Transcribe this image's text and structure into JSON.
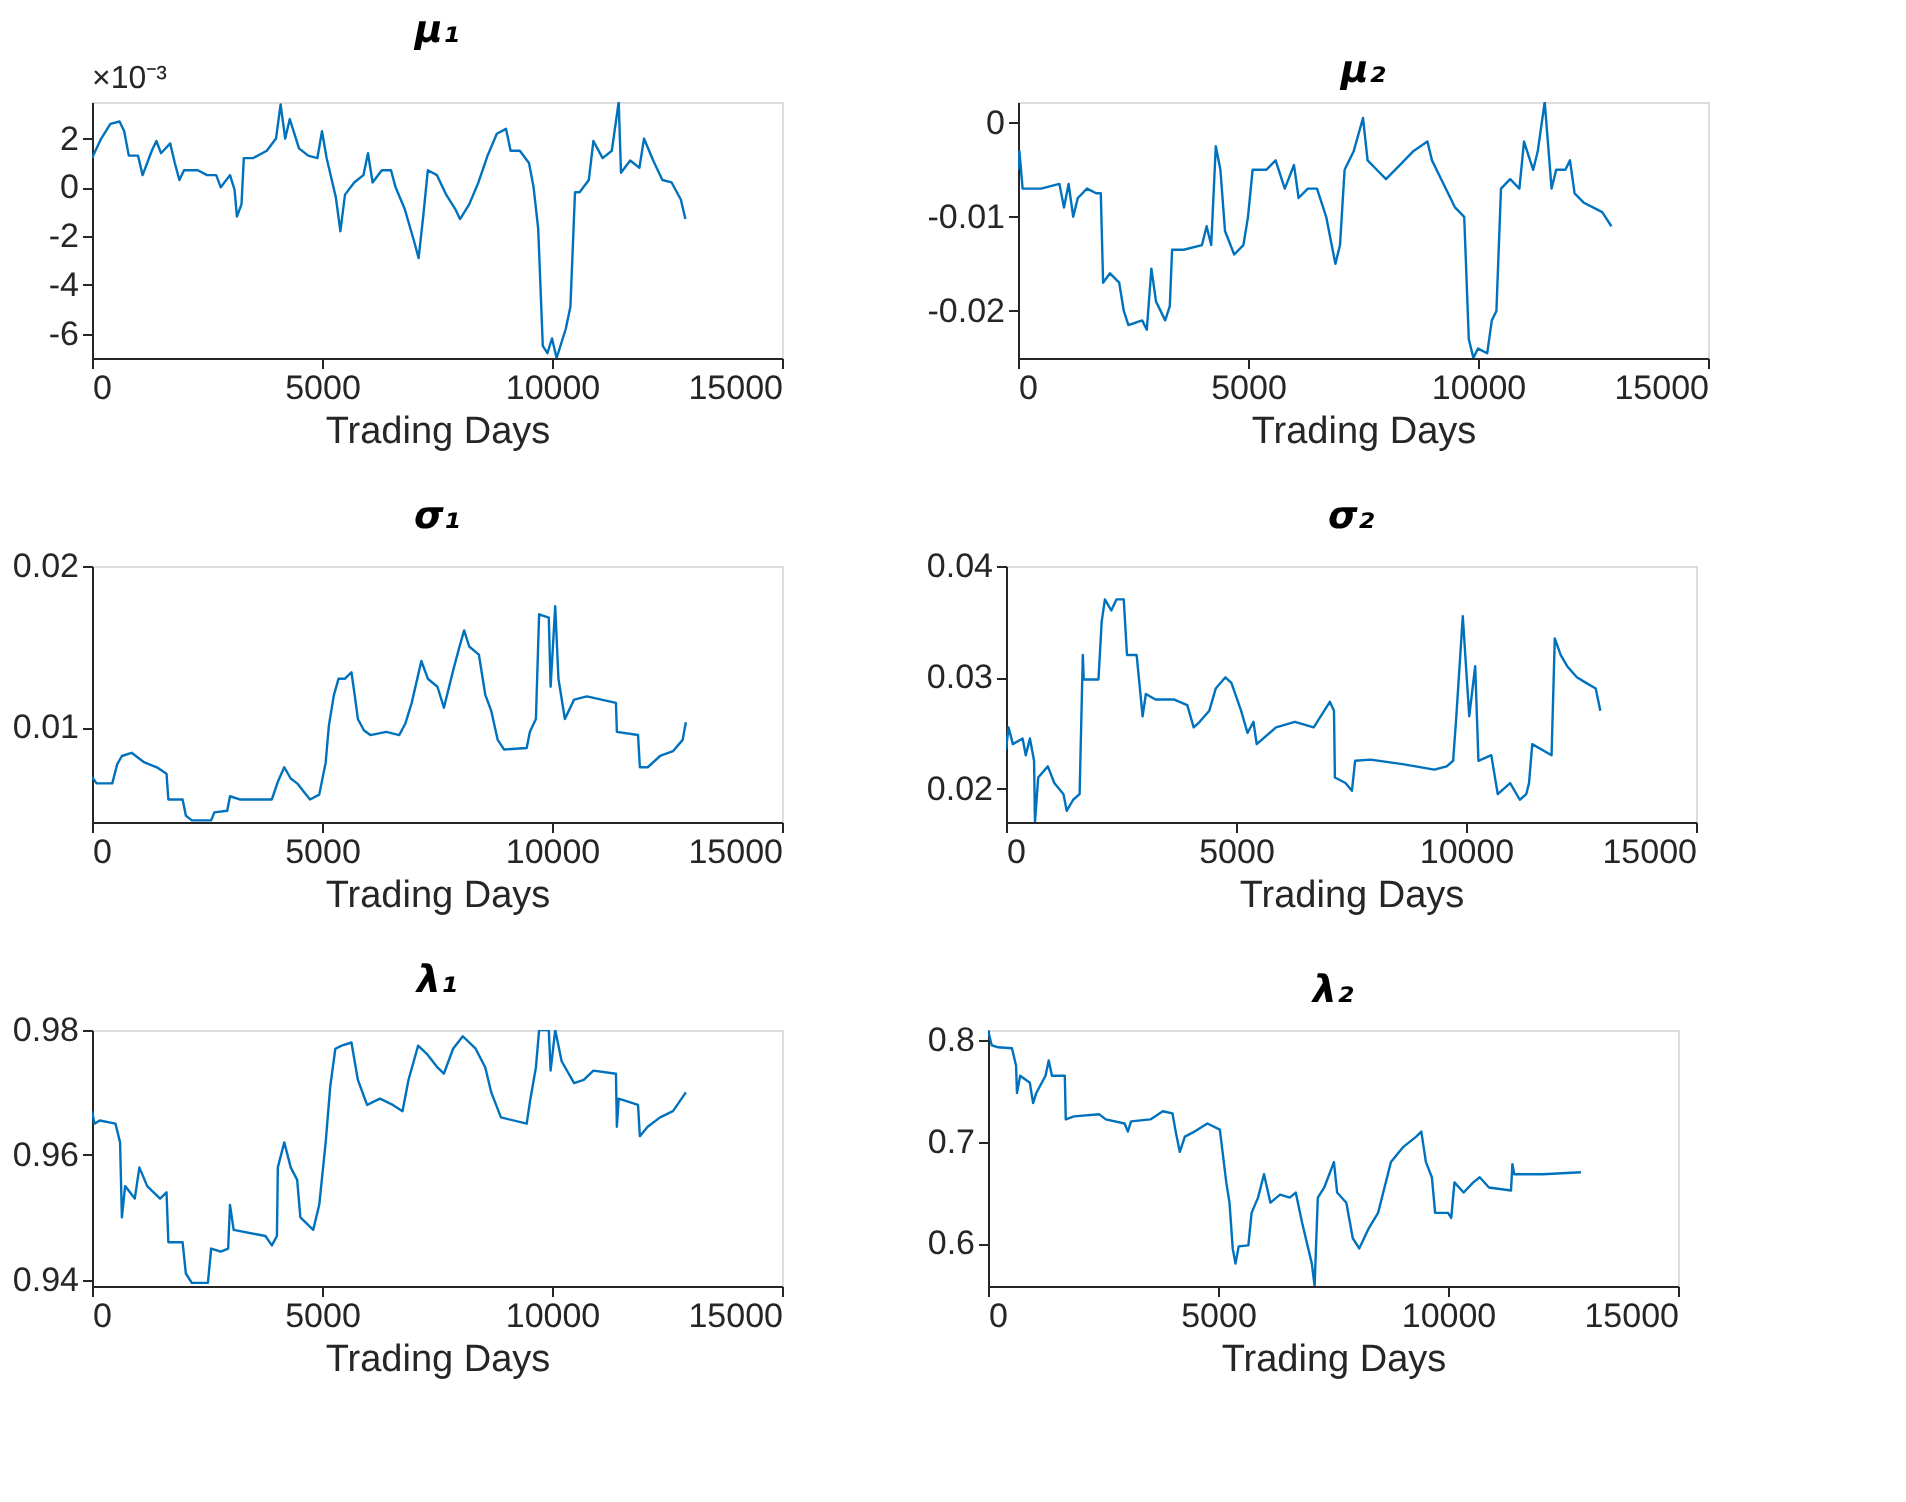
{
  "chart_data": [
    {
      "type": "line",
      "title": "μ₁",
      "xlabel": "Trading Days",
      "color": "#0072bd",
      "xlim": [
        0,
        15000
      ],
      "xticks": [
        0,
        5000,
        10000,
        15000
      ],
      "ylim": [
        -7,
        3.5
      ],
      "yticks": [
        -6,
        -4,
        -2,
        0,
        2
      ],
      "grid": false,
      "annotations": [
        "×10⁻³"
      ],
      "x": [
        0,
        200,
        400,
        600,
        700,
        800,
        1000,
        1100,
        1300,
        1400,
        1500,
        1700,
        1800,
        1900,
        2000,
        2300,
        2500,
        2700,
        2800,
        3000,
        3100,
        3150,
        3250,
        3300,
        3500,
        3800,
        4000,
        4100,
        4200,
        4300,
        4500,
        4700,
        4900,
        5000,
        5100,
        5300,
        5400,
        5500,
        5700,
        5900,
        6000,
        6100,
        6300,
        6500,
        6600,
        6800,
        7000,
        7100,
        7200,
        7300,
        7500,
        7700,
        7900,
        8000,
        8200,
        8400,
        8600,
        8800,
        9000,
        9100,
        9300,
        9500,
        9600,
        9700,
        9800,
        9900,
        10000,
        10100,
        10300,
        10400,
        10500,
        10600,
        10800,
        10900,
        11100,
        11300,
        11450,
        11500,
        11700,
        11900,
        12000,
        12200,
        12400,
        12600,
        12800,
        12900
      ],
      "values": [
        1.2,
        2.0,
        2.6,
        2.7,
        2.3,
        1.3,
        1.3,
        0.5,
        1.5,
        1.9,
        1.4,
        1.8,
        1.0,
        0.3,
        0.7,
        0.7,
        0.5,
        0.5,
        0,
        0.5,
        -0.1,
        -1.2,
        -0.7,
        1.2,
        1.2,
        1.5,
        2.0,
        3.4,
        2.0,
        2.8,
        1.6,
        1.3,
        1.2,
        2.3,
        1.2,
        -0.4,
        -1.8,
        -0.3,
        0.2,
        0.5,
        1.4,
        0.2,
        0.7,
        0.7,
        0,
        -0.9,
        -2.2,
        -2.9,
        -1.2,
        0.7,
        0.5,
        -0.3,
        -0.9,
        -1.3,
        -0.7,
        0.2,
        1.3,
        2.2,
        2.4,
        1.5,
        1.5,
        1.0,
        0,
        -1.7,
        -6.5,
        -6.8,
        -6.2,
        -7.0,
        -5.8,
        -4.9,
        -0.2,
        -0.2,
        0.3,
        1.9,
        1.2,
        1.5,
        3.5,
        0.6,
        1.1,
        0.8,
        2.0,
        1.1,
        0.3,
        0.2,
        -0.5,
        -1.3
      ]
    },
    {
      "type": "line",
      "title": "μ₂",
      "xlabel": "Trading Days",
      "color": "#0072bd",
      "xlim": [
        0,
        15000
      ],
      "xticks": [
        0,
        5000,
        10000,
        15000
      ],
      "ylim": [
        -0.025,
        0.0022
      ],
      "yticks": [
        -0.02,
        -0.01,
        0
      ],
      "grid": false,
      "x": [
        0,
        30,
        100,
        500,
        900,
        1000,
        1100,
        1200,
        1300,
        1500,
        1700,
        1800,
        1850,
        2000,
        2200,
        2300,
        2400,
        2700,
        2800,
        2900,
        3000,
        3200,
        3300,
        3350,
        3600,
        4000,
        4100,
        4200,
        4300,
        4400,
        4500,
        4700,
        4900,
        5000,
        5100,
        5400,
        5600,
        5800,
        6000,
        6100,
        6300,
        6500,
        6700,
        6900,
        7000,
        7100,
        7300,
        7500,
        7600,
        7800,
        8000,
        8300,
        8600,
        8900,
        9000,
        9200,
        9400,
        9500,
        9700,
        9800,
        9900,
        10000,
        10200,
        10300,
        10400,
        10500,
        10700,
        10900,
        11000,
        11200,
        11300,
        11450,
        11600,
        11700,
        11900,
        12000,
        12100,
        12300,
        12500,
        12700,
        12900
      ],
      "values": [
        -0.005,
        -0.003,
        -0.007,
        -0.007,
        -0.0065,
        -0.009,
        -0.0065,
        -0.01,
        -0.008,
        -0.007,
        -0.0075,
        -0.0075,
        -0.017,
        -0.016,
        -0.017,
        -0.02,
        -0.0215,
        -0.021,
        -0.022,
        -0.0155,
        -0.019,
        -0.021,
        -0.0195,
        -0.0135,
        -0.0135,
        -0.013,
        -0.011,
        -0.013,
        -0.0025,
        -0.005,
        -0.0115,
        -0.014,
        -0.013,
        -0.01,
        -0.005,
        -0.005,
        -0.004,
        -0.007,
        -0.0045,
        -0.008,
        -0.007,
        -0.007,
        -0.01,
        -0.015,
        -0.013,
        -0.005,
        -0.003,
        0.0005,
        -0.004,
        -0.005,
        -0.006,
        -0.0045,
        -0.003,
        -0.002,
        -0.004,
        -0.006,
        -0.008,
        -0.009,
        -0.01,
        -0.023,
        -0.025,
        -0.024,
        -0.0245,
        -0.021,
        -0.02,
        -0.007,
        -0.006,
        -0.007,
        -0.002,
        -0.005,
        -0.003,
        0.0022,
        -0.007,
        -0.005,
        -0.005,
        -0.004,
        -0.0075,
        -0.0085,
        -0.009,
        -0.0095,
        -0.011
      ]
    },
    {
      "type": "line",
      "title": "σ₁",
      "xlabel": "Trading Days",
      "color": "#0072bd",
      "xlim": [
        0,
        15000
      ],
      "xticks": [
        0,
        5000,
        10000,
        15000
      ],
      "ylim": [
        0.0041,
        0.02
      ],
      "yticks": [
        0.01,
        0.02
      ],
      "grid": false,
      "x": [
        0,
        100,
        440,
        550,
        650,
        860,
        1140,
        1410,
        1620,
        1660,
        1970,
        2040,
        2170,
        2590,
        2660,
        2940,
        3000,
        3210,
        3910,
        4040,
        4180,
        4320,
        4460,
        4600,
        4740,
        4940,
        5080,
        5150,
        5260,
        5360,
        5500,
        5640,
        5710,
        5780,
        5910,
        6050,
        6400,
        6680,
        6810,
        6950,
        7160,
        7300,
        7510,
        7650,
        7850,
        7990,
        8090,
        8200,
        8410,
        8550,
        8680,
        8820,
        8960,
        9450,
        9520,
        9650,
        9720,
        9930,
        9970,
        10070,
        10140,
        10280,
        10480,
        10760,
        11390,
        11410,
        11870,
        11910,
        12080,
        12350,
        12630,
        12840,
        12910
      ],
      "values": [
        0.0069,
        0.0065,
        0.0065,
        0.0077,
        0.0082,
        0.0084,
        0.0078,
        0.0075,
        0.0071,
        0.0055,
        0.0055,
        0.0045,
        0.0042,
        0.0042,
        0.0047,
        0.0048,
        0.0057,
        0.0055,
        0.0055,
        0.0066,
        0.0075,
        0.0068,
        0.0065,
        0.006,
        0.0055,
        0.0058,
        0.0078,
        0.0101,
        0.012,
        0.013,
        0.013,
        0.0134,
        0.012,
        0.0105,
        0.0098,
        0.0095,
        0.0097,
        0.0095,
        0.0102,
        0.0115,
        0.0141,
        0.013,
        0.0125,
        0.0112,
        0.0135,
        0.015,
        0.016,
        0.015,
        0.0145,
        0.012,
        0.011,
        0.0092,
        0.0086,
        0.0087,
        0.0097,
        0.0105,
        0.017,
        0.0168,
        0.0125,
        0.0175,
        0.013,
        0.0105,
        0.0117,
        0.0119,
        0.0115,
        0.0097,
        0.0095,
        0.0075,
        0.0075,
        0.0082,
        0.0085,
        0.0092,
        0.0103
      ]
    },
    {
      "type": "line",
      "title": "σ₂",
      "xlabel": "Trading Days",
      "color": "#0072bd",
      "xlim": [
        0,
        15000
      ],
      "xticks": [
        0,
        5000,
        10000,
        15000
      ],
      "ylim": [
        0.017,
        0.04
      ],
      "yticks": [
        0.02,
        0.03,
        0.04
      ],
      "grid": false,
      "x": [
        0,
        55,
        150,
        360,
        430,
        520,
        610,
        630,
        700,
        910,
        1050,
        1250,
        1320,
        1460,
        1600,
        1670,
        1690,
        2010,
        2080,
        2150,
        2290,
        2400,
        2560,
        2630,
        2840,
        2970,
        3040,
        3250,
        3660,
        3940,
        4080,
        4210,
        4420,
        4560,
        4770,
        4900,
        5110,
        5250,
        5380,
        5450,
        5870,
        6280,
        6690,
        7040,
        7130,
        7150,
        7380,
        7520,
        7590,
        7930,
        8620,
        9310,
        9580,
        9720,
        9790,
        9930,
        10070,
        10200,
        10270,
        10550,
        10690,
        10960,
        11170,
        11310,
        11370,
        11440,
        11860,
        11930,
        12060,
        12200,
        12410,
        12610,
        12820,
        12920
      ],
      "values": [
        0.0235,
        0.0255,
        0.024,
        0.0245,
        0.023,
        0.0245,
        0.0225,
        0.017,
        0.021,
        0.022,
        0.0205,
        0.0195,
        0.018,
        0.019,
        0.0195,
        0.032,
        0.0298,
        0.0298,
        0.035,
        0.037,
        0.036,
        0.037,
        0.037,
        0.032,
        0.032,
        0.0265,
        0.0285,
        0.028,
        0.028,
        0.0275,
        0.0255,
        0.026,
        0.027,
        0.029,
        0.03,
        0.0295,
        0.027,
        0.025,
        0.026,
        0.024,
        0.0255,
        0.026,
        0.0255,
        0.0278,
        0.027,
        0.021,
        0.0205,
        0.0198,
        0.0225,
        0.0226,
        0.0222,
        0.0217,
        0.022,
        0.0225,
        0.0265,
        0.0355,
        0.0265,
        0.031,
        0.0225,
        0.023,
        0.0195,
        0.0205,
        0.019,
        0.0195,
        0.0205,
        0.024,
        0.023,
        0.0335,
        0.032,
        0.031,
        0.03,
        0.0295,
        0.029,
        0.027
      ]
    },
    {
      "type": "line",
      "title": "λ₁",
      "xlabel": "Trading Days",
      "color": "#0072bd",
      "xlim": [
        0,
        15000
      ],
      "xticks": [
        0,
        5000,
        10000,
        15000
      ],
      "ylim": [
        0.939,
        0.98
      ],
      "yticks": [
        0.94,
        0.96,
        0.98
      ],
      "grid": false,
      "x": [
        0,
        55,
        170,
        510,
        610,
        650,
        720,
        930,
        1030,
        1200,
        1340,
        1480,
        1620,
        1660,
        1970,
        2040,
        2170,
        2520,
        2590,
        2800,
        2960,
        3000,
        3080,
        3770,
        3910,
        4020,
        4040,
        4180,
        4320,
        4460,
        4530,
        4670,
        4810,
        4940,
        5080,
        5180,
        5290,
        5430,
        5640,
        5780,
        5980,
        6260,
        6540,
        6750,
        6880,
        7090,
        7300,
        7510,
        7650,
        7850,
        8060,
        8340,
        8550,
        8680,
        8890,
        9450,
        9520,
        9650,
        9720,
        9930,
        9970,
        10070,
        10210,
        10480,
        10690,
        10900,
        11390,
        11410,
        11450,
        11870,
        11910,
        12080,
        12350,
        12630,
        12910
      ],
      "values": [
        0.967,
        0.965,
        0.9655,
        0.965,
        0.962,
        0.95,
        0.955,
        0.953,
        0.958,
        0.955,
        0.954,
        0.953,
        0.954,
        0.946,
        0.946,
        0.941,
        0.9395,
        0.9395,
        0.945,
        0.9445,
        0.945,
        0.952,
        0.948,
        0.947,
        0.9455,
        0.947,
        0.958,
        0.962,
        0.958,
        0.956,
        0.95,
        0.949,
        0.948,
        0.952,
        0.962,
        0.971,
        0.977,
        0.9775,
        0.978,
        0.972,
        0.968,
        0.969,
        0.968,
        0.967,
        0.972,
        0.9775,
        0.976,
        0.974,
        0.973,
        0.977,
        0.979,
        0.977,
        0.974,
        0.97,
        0.966,
        0.965,
        0.9685,
        0.974,
        0.98,
        0.98,
        0.9735,
        0.98,
        0.975,
        0.9715,
        0.972,
        0.9735,
        0.973,
        0.9645,
        0.969,
        0.968,
        0.963,
        0.9645,
        0.966,
        0.967,
        0.97
      ]
    },
    {
      "type": "line",
      "title": "λ₂",
      "xlabel": "Trading Days",
      "color": "#0072bd",
      "xlim": [
        0,
        15000
      ],
      "xticks": [
        0,
        5000,
        10000,
        15000
      ],
      "ylim": [
        0.558,
        0.81
      ],
      "yticks": [
        0.6,
        0.7,
        0.8
      ],
      "grid": false,
      "x": [
        0,
        80,
        220,
        520,
        610,
        630,
        700,
        910,
        980,
        1050,
        1250,
        1320,
        1390,
        1670,
        1690,
        1870,
        2420,
        2560,
        2970,
        3040,
        3110,
        3530,
        3800,
        4010,
        4080,
        4170,
        4280,
        4490,
        4770,
        5040,
        5180,
        5250,
        5320,
        5380,
        5450,
        5660,
        5730,
        5870,
        6000,
        6140,
        6350,
        6560,
        6690,
        6830,
        7040,
        7100,
        7170,
        7310,
        7520,
        7590,
        7790,
        7930,
        8070,
        8280,
        8480,
        8760,
        9030,
        9310,
        9420,
        9520,
        9650,
        9720,
        10000,
        10070,
        10140,
        10340,
        10550,
        10690,
        10890,
        11370,
        11400,
        11440,
        12060,
        12890
      ],
      "values": [
        0.81,
        0.795,
        0.793,
        0.792,
        0.775,
        0.748,
        0.765,
        0.758,
        0.738,
        0.748,
        0.765,
        0.78,
        0.765,
        0.765,
        0.722,
        0.725,
        0.727,
        0.722,
        0.718,
        0.71,
        0.72,
        0.722,
        0.73,
        0.728,
        0.71,
        0.69,
        0.705,
        0.71,
        0.718,
        0.712,
        0.66,
        0.64,
        0.595,
        0.58,
        0.597,
        0.598,
        0.63,
        0.645,
        0.668,
        0.64,
        0.648,
        0.645,
        0.65,
        0.62,
        0.58,
        0.558,
        0.645,
        0.655,
        0.68,
        0.65,
        0.64,
        0.605,
        0.595,
        0.615,
        0.63,
        0.68,
        0.695,
        0.705,
        0.71,
        0.68,
        0.665,
        0.63,
        0.63,
        0.625,
        0.66,
        0.65,
        0.66,
        0.665,
        0.655,
        0.652,
        0.678,
        0.668,
        0.668,
        0.67
      ]
    }
  ]
}
